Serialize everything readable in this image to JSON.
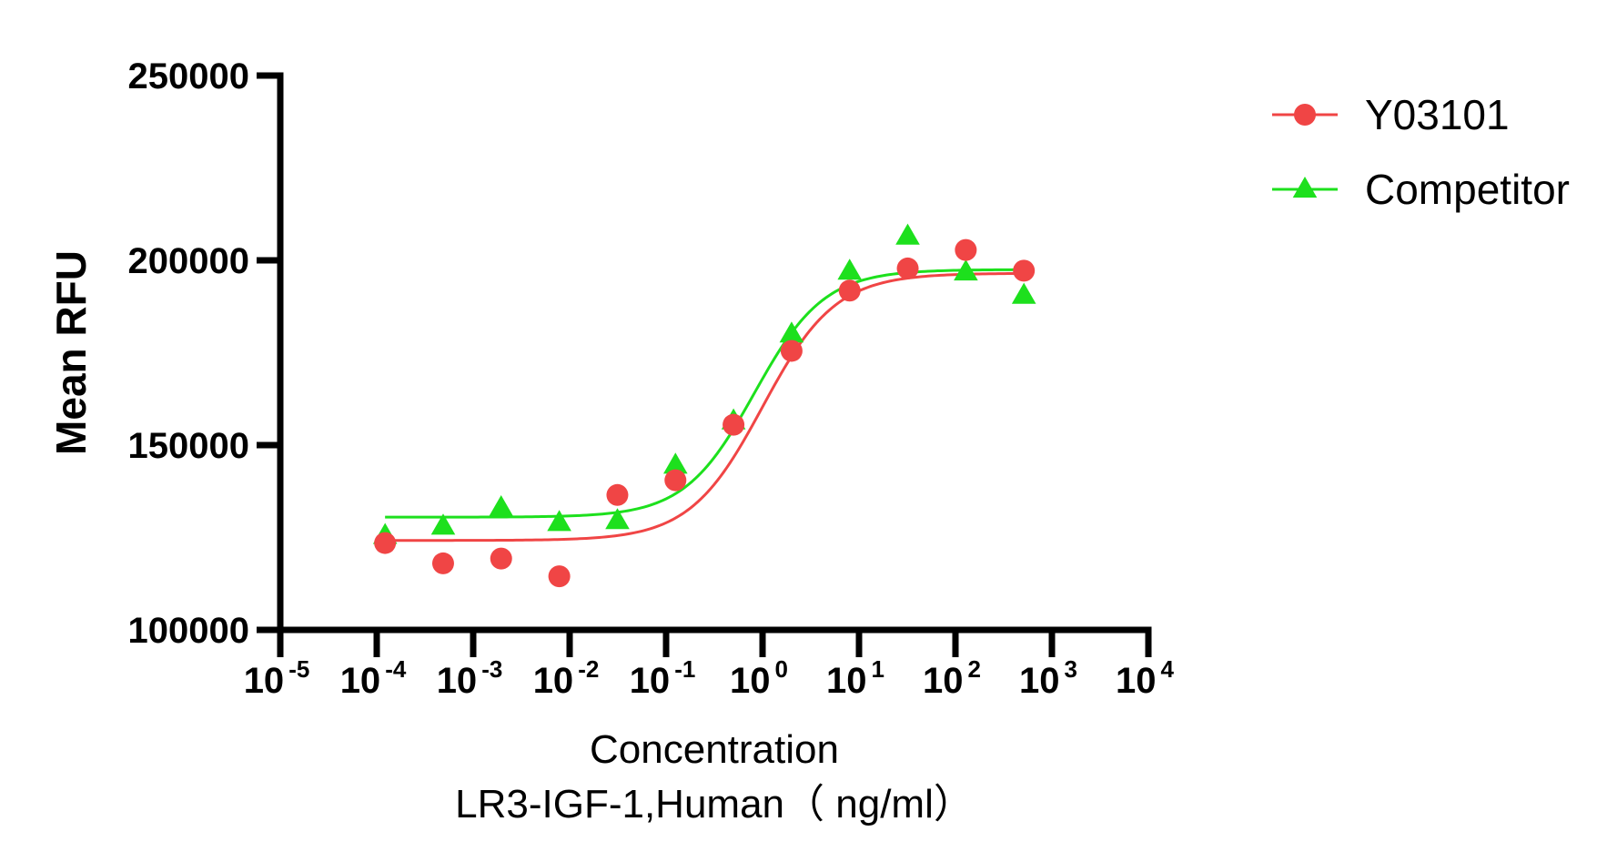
{
  "chart_data": {
    "type": "scatter",
    "xscale": "log10",
    "xlabel": "Concentration",
    "xlabel_line2": "LR3-IGF-1,Human（ ng/ml）",
    "ylabel": "Mean RFU",
    "xlim": [
      1e-05,
      10000
    ],
    "ylim": [
      100000,
      250000
    ],
    "x_ticks": [
      {
        "base": "10",
        "exp": "-5",
        "value": 1e-05
      },
      {
        "base": "10",
        "exp": "-4",
        "value": 0.0001
      },
      {
        "base": "10",
        "exp": "-3",
        "value": 0.001
      },
      {
        "base": "10",
        "exp": "-2",
        "value": 0.01
      },
      {
        "base": "10",
        "exp": "-1",
        "value": 0.1
      },
      {
        "base": "10",
        "exp": "0",
        "value": 1
      },
      {
        "base": "10",
        "exp": "1",
        "value": 10
      },
      {
        "base": "10",
        "exp": "2",
        "value": 100
      },
      {
        "base": "10",
        "exp": "3",
        "value": 1000
      },
      {
        "base": "10",
        "exp": "4",
        "value": 10000
      }
    ],
    "y_ticks": [
      {
        "label": "100000",
        "value": 100000
      },
      {
        "label": "150000",
        "value": 150000
      },
      {
        "label": "200000",
        "value": 200000
      },
      {
        "label": "250000",
        "value": 250000
      }
    ],
    "legend_position": "top-right",
    "series": [
      {
        "name": "Y03101",
        "color": "#f04545",
        "marker": "circle",
        "x": [
          0.000122,
          0.000488,
          0.00195,
          0.00781,
          0.03125,
          0.125,
          0.5,
          2,
          8,
          32,
          128,
          512
        ],
        "y": [
          123500,
          118000,
          119300,
          114500,
          136500,
          140500,
          155500,
          175500,
          191800,
          197800,
          202800,
          197200
        ],
        "fit": {
          "bottom": 124200,
          "top": 196500,
          "ec50": 1.0,
          "hill": 1.15
        }
      },
      {
        "name": "Competitor",
        "color": "#1de01d",
        "marker": "triangle",
        "x": [
          0.000122,
          0.000488,
          0.00195,
          0.00781,
          0.03125,
          0.125,
          0.5,
          2,
          8,
          32,
          128,
          512
        ],
        "y": [
          125500,
          128000,
          133000,
          129000,
          129500,
          144500,
          156500,
          180000,
          197000,
          206500,
          196800,
          190500
        ],
        "fit": {
          "bottom": 130500,
          "top": 197500,
          "ec50": 0.82,
          "hill": 1.2
        }
      }
    ]
  }
}
